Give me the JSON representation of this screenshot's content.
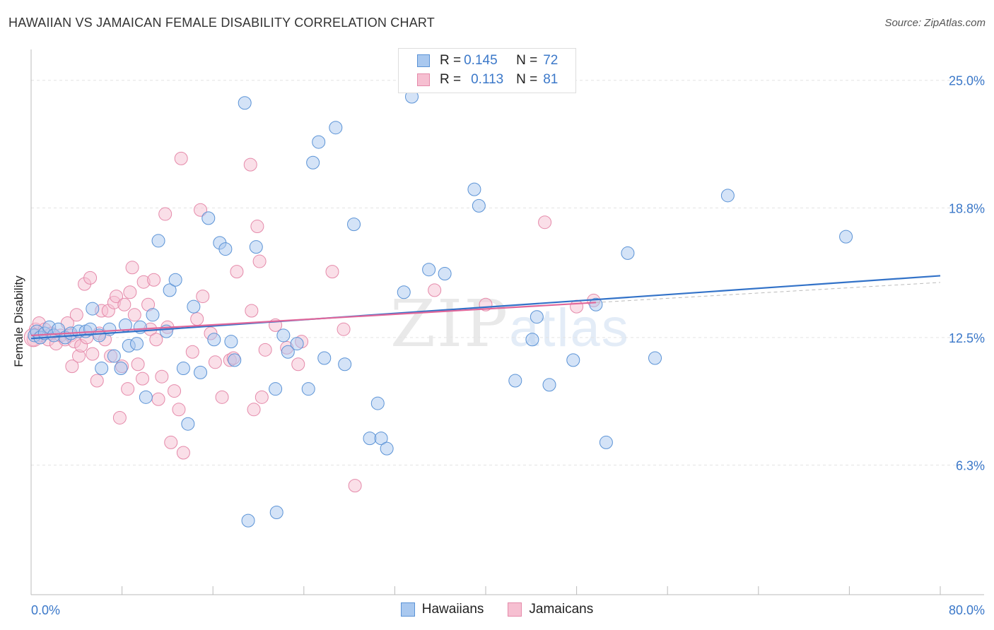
{
  "title": "HAWAIIAN VS JAMAICAN FEMALE DISABILITY CORRELATION CHART",
  "source": "Source: ZipAtlas.com",
  "watermark": {
    "zip": "ZIP",
    "atlas": "atlas"
  },
  "legend": {
    "rows": [
      {
        "r_label": "R =",
        "r_value": "0.145",
        "n_label": "N =",
        "n_value": "72"
      },
      {
        "r_label": "R =",
        "r_value": "0.113",
        "n_label": "N =",
        "n_value": "81"
      }
    ]
  },
  "bottom_legend": [
    "Hawaiians",
    "Jamaicans"
  ],
  "colors": {
    "hawaiian_fill": "#a9c8ef",
    "hawaiian_stroke": "#5b93d6",
    "hawaiian_line": "#3272c8",
    "jamaican_fill": "#f6bfd1",
    "jamaican_stroke": "#e58aaa",
    "jamaican_line": "#e0679a",
    "tick_text": "#3b78c9",
    "grid": "#e3e3e3"
  },
  "chart_data": {
    "type": "scatter",
    "title": "HAWAIIAN VS JAMAICAN FEMALE DISABILITY CORRELATION CHART",
    "xlabel": "",
    "ylabel": "Female Disability",
    "xlim": [
      0,
      80
    ],
    "ylim": [
      0,
      26.5
    ],
    "x_tick_labels": [
      "0.0%",
      "80.0%"
    ],
    "y_ticks": [
      6.3,
      12.5,
      18.8,
      25.0
    ],
    "y_tick_labels": [
      "6.3%",
      "12.5%",
      "18.8%",
      "25.0%"
    ],
    "grid": true,
    "legend_position": "top-center",
    "series": [
      {
        "name": "Hawaiians",
        "r": 0.145,
        "n": 72,
        "trend": {
          "x": [
            0,
            80
          ],
          "y": [
            12.45,
            15.5
          ]
        },
        "points": [
          [
            0.3,
            12.6
          ],
          [
            0.5,
            12.8
          ],
          [
            0.8,
            12.5
          ],
          [
            1.2,
            12.7
          ],
          [
            1.6,
            13.0
          ],
          [
            2.0,
            12.6
          ],
          [
            2.4,
            12.9
          ],
          [
            3.0,
            12.5
          ],
          [
            3.5,
            12.7
          ],
          [
            4.2,
            12.8
          ],
          [
            4.8,
            12.8
          ],
          [
            5.2,
            12.9
          ],
          [
            5.4,
            13.9
          ],
          [
            6.0,
            12.6
          ],
          [
            6.2,
            11.0
          ],
          [
            6.9,
            12.9
          ],
          [
            7.3,
            11.6
          ],
          [
            7.9,
            11.0
          ],
          [
            8.3,
            13.1
          ],
          [
            8.6,
            12.1
          ],
          [
            9.3,
            12.2
          ],
          [
            9.6,
            13.0
          ],
          [
            10.1,
            9.6
          ],
          [
            10.7,
            13.6
          ],
          [
            11.2,
            17.2
          ],
          [
            11.9,
            12.8
          ],
          [
            12.2,
            14.8
          ],
          [
            12.7,
            15.3
          ],
          [
            13.4,
            11.0
          ],
          [
            13.8,
            8.3
          ],
          [
            14.3,
            14.0
          ],
          [
            14.9,
            10.8
          ],
          [
            15.6,
            18.3
          ],
          [
            16.1,
            12.4
          ],
          [
            16.6,
            17.1
          ],
          [
            17.1,
            16.8
          ],
          [
            17.6,
            12.3
          ],
          [
            17.9,
            11.4
          ],
          [
            18.8,
            23.9
          ],
          [
            19.1,
            3.6
          ],
          [
            19.8,
            16.9
          ],
          [
            21.5,
            10.0
          ],
          [
            21.6,
            4.0
          ],
          [
            22.2,
            12.6
          ],
          [
            22.6,
            11.8
          ],
          [
            23.4,
            12.2
          ],
          [
            24.4,
            10.0
          ],
          [
            24.8,
            21.0
          ],
          [
            25.3,
            22.0
          ],
          [
            25.8,
            11.5
          ],
          [
            26.8,
            22.7
          ],
          [
            27.6,
            11.2
          ],
          [
            28.4,
            18.0
          ],
          [
            29.8,
            7.6
          ],
          [
            30.5,
            9.3
          ],
          [
            30.8,
            7.6
          ],
          [
            31.3,
            7.1
          ],
          [
            32.8,
            14.7
          ],
          [
            33.5,
            24.2
          ],
          [
            35.0,
            15.8
          ],
          [
            36.4,
            15.6
          ],
          [
            39.0,
            19.7
          ],
          [
            39.4,
            18.9
          ],
          [
            42.6,
            10.4
          ],
          [
            44.1,
            12.4
          ],
          [
            44.5,
            13.5
          ],
          [
            45.6,
            10.2
          ],
          [
            47.7,
            11.4
          ],
          [
            49.7,
            14.1
          ],
          [
            50.6,
            7.4
          ],
          [
            52.5,
            16.6
          ],
          [
            54.9,
            11.5
          ],
          [
            61.3,
            19.4
          ],
          [
            71.7,
            17.4
          ]
        ]
      },
      {
        "name": "Jamaicans",
        "r": 0.113,
        "n": 81,
        "trend": {
          "x": [
            0,
            49.7
          ],
          "y": [
            12.6,
            14.2
          ]
        },
        "points": [
          [
            0.2,
            12.4
          ],
          [
            0.4,
            12.9
          ],
          [
            0.7,
            13.2
          ],
          [
            0.9,
            12.6
          ],
          [
            1.2,
            12.9
          ],
          [
            1.5,
            12.4
          ],
          [
            1.8,
            12.7
          ],
          [
            2.2,
            12.2
          ],
          [
            2.6,
            12.6
          ],
          [
            3.0,
            12.4
          ],
          [
            3.2,
            13.2
          ],
          [
            3.5,
            12.6
          ],
          [
            3.6,
            11.1
          ],
          [
            3.8,
            12.3
          ],
          [
            4.0,
            13.6
          ],
          [
            4.2,
            11.6
          ],
          [
            4.4,
            12.1
          ],
          [
            4.7,
            15.1
          ],
          [
            4.9,
            12.5
          ],
          [
            5.2,
            15.4
          ],
          [
            5.4,
            11.7
          ],
          [
            5.8,
            10.4
          ],
          [
            6.0,
            12.7
          ],
          [
            6.2,
            13.8
          ],
          [
            6.5,
            12.4
          ],
          [
            6.8,
            13.8
          ],
          [
            7.0,
            11.6
          ],
          [
            7.3,
            14.2
          ],
          [
            7.5,
            14.5
          ],
          [
            7.8,
            8.6
          ],
          [
            8.0,
            11.1
          ],
          [
            8.2,
            14.1
          ],
          [
            8.5,
            10.0
          ],
          [
            8.7,
            14.7
          ],
          [
            8.9,
            15.9
          ],
          [
            9.1,
            13.6
          ],
          [
            9.4,
            11.2
          ],
          [
            9.8,
            10.5
          ],
          [
            9.9,
            15.2
          ],
          [
            10.3,
            14.1
          ],
          [
            10.5,
            12.9
          ],
          [
            10.8,
            15.3
          ],
          [
            11.0,
            12.4
          ],
          [
            11.2,
            9.5
          ],
          [
            11.5,
            10.6
          ],
          [
            11.8,
            18.5
          ],
          [
            12.0,
            13.0
          ],
          [
            12.3,
            7.4
          ],
          [
            12.6,
            9.9
          ],
          [
            13.0,
            9.0
          ],
          [
            13.2,
            21.2
          ],
          [
            13.4,
            6.9
          ],
          [
            14.2,
            11.8
          ],
          [
            14.6,
            13.4
          ],
          [
            14.9,
            18.7
          ],
          [
            15.1,
            14.5
          ],
          [
            15.8,
            12.7
          ],
          [
            16.2,
            11.3
          ],
          [
            16.8,
            9.6
          ],
          [
            17.5,
            11.4
          ],
          [
            17.8,
            11.5
          ],
          [
            18.1,
            15.7
          ],
          [
            19.3,
            20.9
          ],
          [
            19.4,
            13.8
          ],
          [
            19.6,
            9.0
          ],
          [
            19.9,
            17.9
          ],
          [
            20.1,
            16.2
          ],
          [
            20.3,
            9.6
          ],
          [
            20.6,
            11.9
          ],
          [
            21.5,
            13.1
          ],
          [
            22.5,
            12.0
          ],
          [
            23.5,
            11.2
          ],
          [
            23.8,
            12.3
          ],
          [
            26.5,
            15.7
          ],
          [
            27.5,
            12.9
          ],
          [
            28.5,
            5.3
          ],
          [
            35.5,
            14.8
          ],
          [
            45.2,
            18.1
          ],
          [
            48.0,
            14.0
          ],
          [
            49.5,
            14.3
          ],
          [
            40.0,
            14.1
          ]
        ]
      }
    ]
  }
}
